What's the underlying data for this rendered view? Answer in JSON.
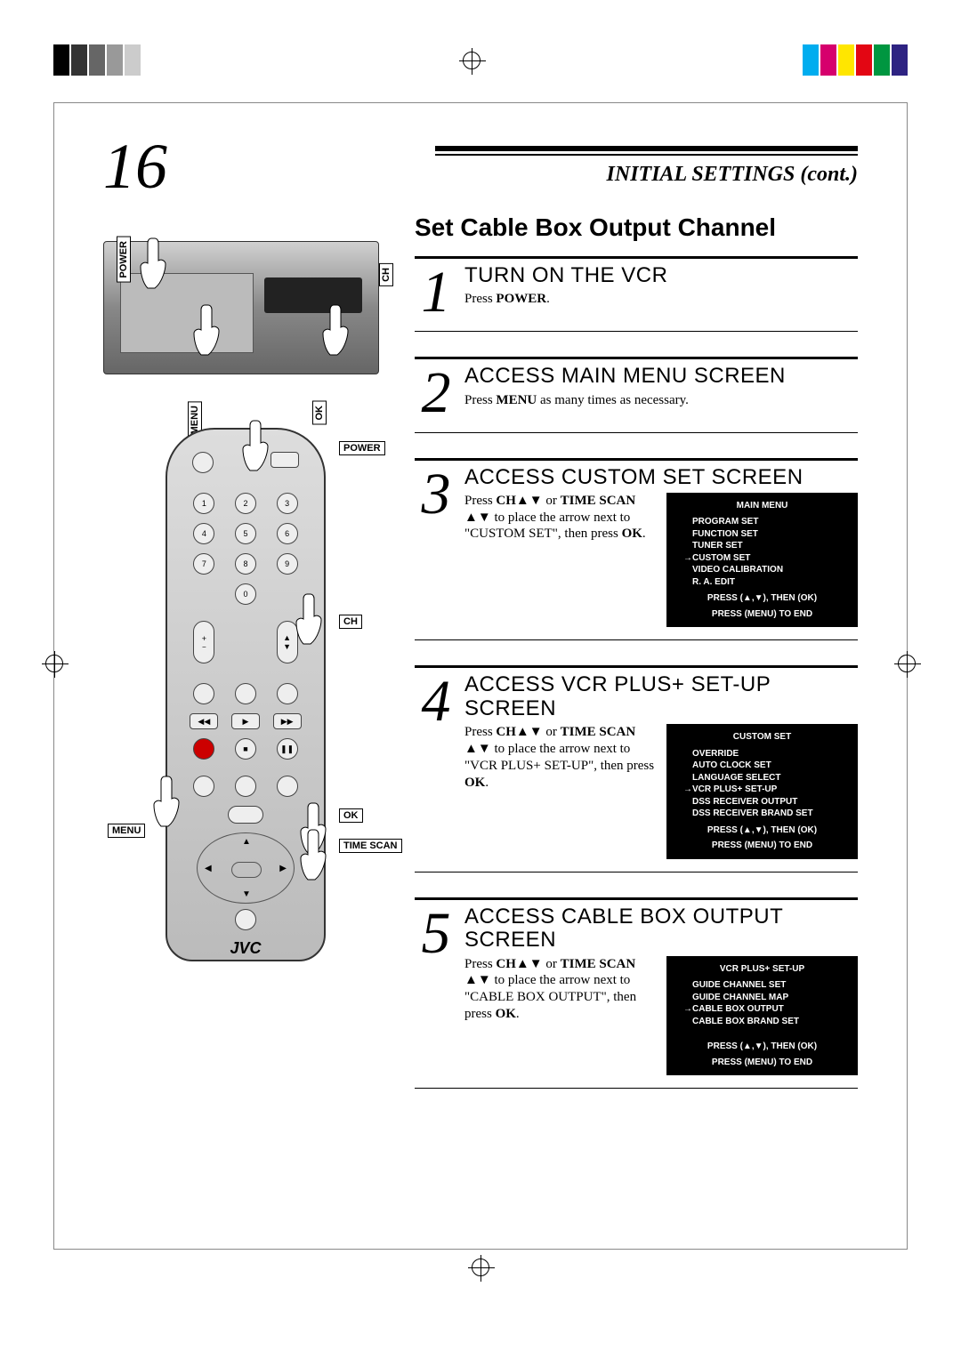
{
  "pageNumber": "16",
  "headerTitle": "INITIAL SETTINGS (cont.)",
  "sectionTitle": "Set Cable Box Output Channel",
  "colors": {
    "black": "#000000",
    "white": "#ffffff",
    "osdBg": "#000000",
    "osdText": "#ffffff",
    "regColors": [
      "#000000",
      "#333333",
      "#666666",
      "#999999",
      "#cccccc",
      "#00adef",
      "#d6006d",
      "#ffe600",
      "#e30613",
      "#009640",
      "#2e2382"
    ]
  },
  "vcrLabels": {
    "power": "POWER",
    "ch": "CH",
    "menu": "MENU",
    "ok": "OK"
  },
  "remoteLabels": {
    "power": "POWER",
    "ch": "CH",
    "ok": "OK",
    "menu": "MENU",
    "timeScan": "TIME SCAN",
    "brand": "JVC"
  },
  "steps": [
    {
      "num": "1",
      "heading": "TURN ON THE VCR",
      "text_pre": "Press ",
      "text_bold": "POWER",
      "text_post": "."
    },
    {
      "num": "2",
      "heading": "ACCESS MAIN MENU SCREEN",
      "text_pre": "Press ",
      "text_bold": "MENU",
      "text_post": " as many times as necessary."
    },
    {
      "num": "3",
      "heading": "ACCESS CUSTOM SET SCREEN",
      "text_full": "Press CH▲▼ or TIME SCAN ▲▼ to place the arrow next to \"CUSTOM SET\", then press OK.",
      "osd": {
        "title": "MAIN MENU",
        "items": [
          "PROGRAM SET",
          "FUNCTION SET",
          "TUNER SET",
          "→CUSTOM SET",
          "VIDEO CALIBRATION",
          "R. A. EDIT"
        ],
        "foot1": "PRESS (▲,▼), THEN (OK)",
        "foot2": "PRESS (MENU) TO END"
      }
    },
    {
      "num": "4",
      "heading": "ACCESS VCR PLUS+ SET-UP SCREEN",
      "text_full": "Press CH▲▼ or TIME SCAN ▲▼ to place the arrow next to \"VCR PLUS+ SET-UP\", then press OK.",
      "osd": {
        "title": "CUSTOM SET",
        "items": [
          "OVERRIDE",
          "AUTO CLOCK SET",
          "LANGUAGE SELECT",
          "→VCR PLUS+ SET-UP",
          "DSS RECEIVER OUTPUT",
          "DSS RECEIVER BRAND SET"
        ],
        "foot1": "PRESS (▲,▼), THEN (OK)",
        "foot2": "PRESS (MENU) TO END"
      }
    },
    {
      "num": "5",
      "heading": "ACCESS CABLE BOX OUTPUT SCREEN",
      "text_full": "Press CH▲▼ or TIME SCAN ▲▼ to place the arrow next to \"CABLE BOX OUTPUT\", then press OK.",
      "osd": {
        "title": "VCR PLUS+ SET-UP",
        "items": [
          "GUIDE CHANNEL SET",
          "GUIDE CHANNEL MAP",
          "→CABLE BOX OUTPUT",
          "CABLE BOX BRAND SET"
        ],
        "foot1": "PRESS (▲,▼), THEN (OK)",
        "foot2": "PRESS (MENU) TO END"
      }
    }
  ]
}
